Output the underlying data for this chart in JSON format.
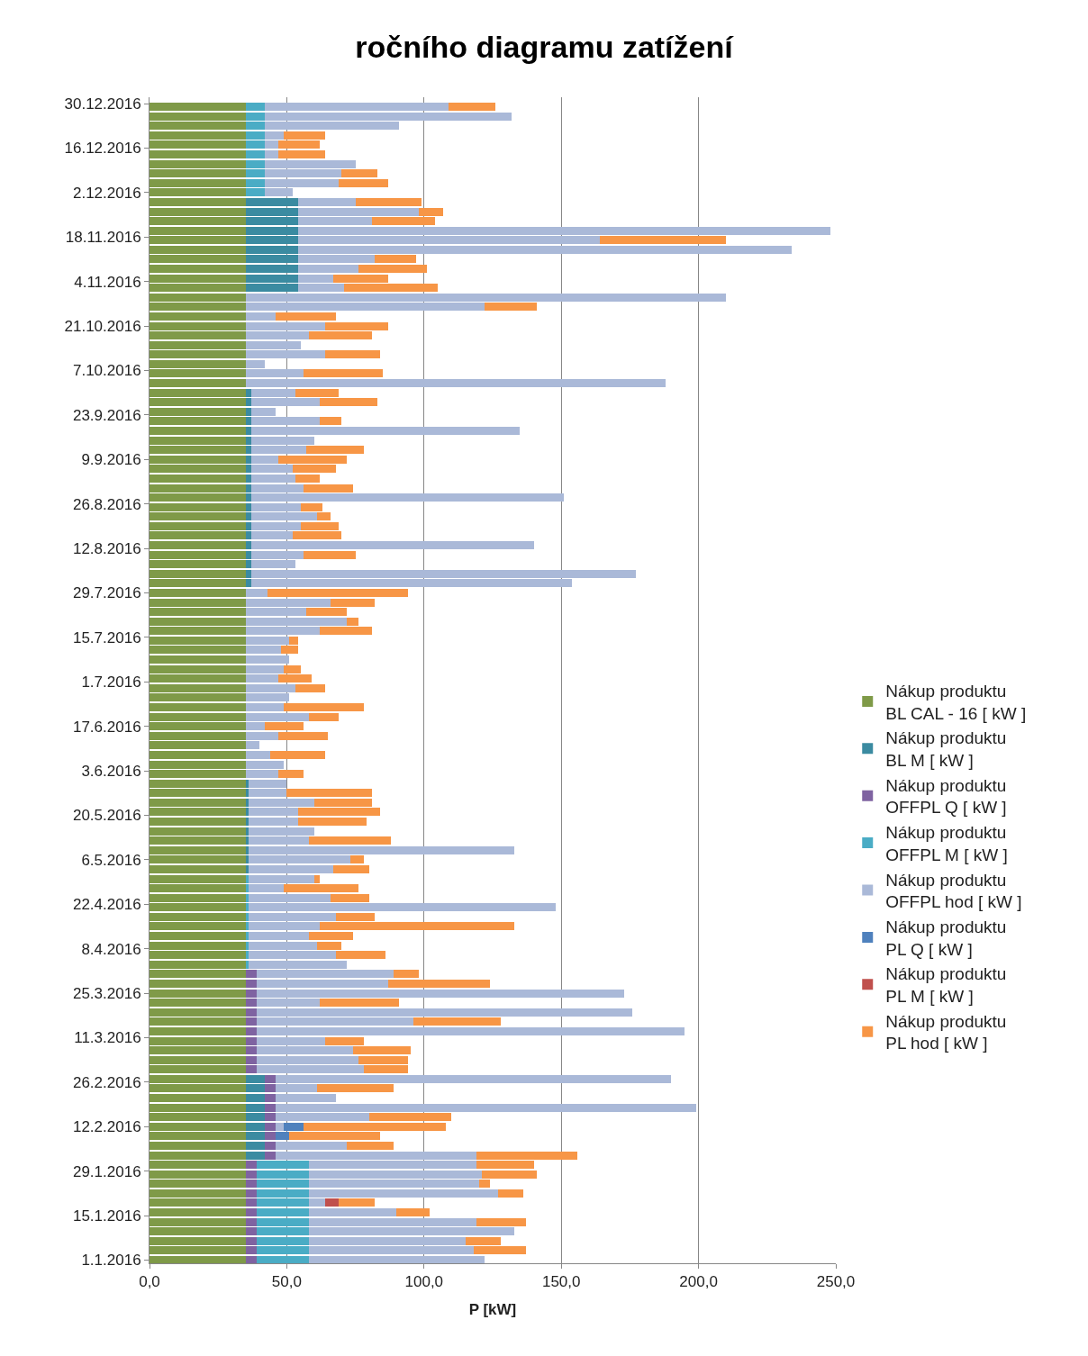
{
  "chart_data": {
    "type": "bar",
    "orientation": "horizontal",
    "stacked": true,
    "title": "ročního diagramu zatížení",
    "xlabel": "P [kW]",
    "x": [
      "2016-01-01",
      "2016-01-04",
      "2016-01-07",
      "2016-01-10",
      "2016-01-13",
      "2016-01-16",
      "2016-01-19",
      "2016-01-22",
      "2016-01-25",
      "2016-01-28",
      "2016-01-31",
      "2016-02-03",
      "2016-02-06",
      "2016-02-09",
      "2016-02-12",
      "2016-02-15",
      "2016-02-18",
      "2016-02-21",
      "2016-02-24",
      "2016-02-27",
      "2016-03-01",
      "2016-03-04",
      "2016-03-07",
      "2016-03-10",
      "2016-03-13",
      "2016-03-16",
      "2016-03-19",
      "2016-03-22",
      "2016-03-25",
      "2016-03-28",
      "2016-03-31",
      "2016-04-03",
      "2016-04-06",
      "2016-04-09",
      "2016-04-12",
      "2016-04-15",
      "2016-04-18",
      "2016-04-21",
      "2016-04-24",
      "2016-04-27",
      "2016-04-30",
      "2016-05-03",
      "2016-05-06",
      "2016-05-09",
      "2016-05-12",
      "2016-05-15",
      "2016-05-18",
      "2016-05-21",
      "2016-05-24",
      "2016-05-27",
      "2016-05-30",
      "2016-06-02",
      "2016-06-05",
      "2016-06-08",
      "2016-06-11",
      "2016-06-14",
      "2016-06-17",
      "2016-06-20",
      "2016-06-23",
      "2016-06-26",
      "2016-06-29",
      "2016-07-02",
      "2016-07-05",
      "2016-07-08",
      "2016-07-11",
      "2016-07-14",
      "2016-07-17",
      "2016-07-20",
      "2016-07-23",
      "2016-07-26",
      "2016-07-29",
      "2016-08-01",
      "2016-08-04",
      "2016-08-07",
      "2016-08-10",
      "2016-08-13",
      "2016-08-16",
      "2016-08-19",
      "2016-08-22",
      "2016-08-25",
      "2016-08-28",
      "2016-08-31",
      "2016-09-03",
      "2016-09-06",
      "2016-09-09",
      "2016-09-12",
      "2016-09-15",
      "2016-09-18",
      "2016-09-21",
      "2016-09-24",
      "2016-09-27",
      "2016-09-30",
      "2016-10-03",
      "2016-10-06",
      "2016-10-09",
      "2016-10-12",
      "2016-10-15",
      "2016-10-18",
      "2016-10-21",
      "2016-10-24",
      "2016-10-27",
      "2016-10-30",
      "2016-11-02",
      "2016-11-05",
      "2016-11-08",
      "2016-11-11",
      "2016-11-14",
      "2016-11-17",
      "2016-11-20",
      "2016-11-23",
      "2016-11-26",
      "2016-11-29",
      "2016-12-02",
      "2016-12-05",
      "2016-12-08",
      "2016-12-11",
      "2016-12-14",
      "2016-12-17",
      "2016-12-20",
      "2016-12-23",
      "2016-12-26",
      "2016-12-29"
    ],
    "series": [
      {
        "name": "Nákup produktu\nBL CAL - 16 [ kW ]",
        "color": "#7f9a48",
        "values": [
          35,
          35,
          35,
          35,
          35,
          35,
          35,
          35,
          35,
          35,
          35,
          35,
          35,
          35,
          35,
          35,
          35,
          35,
          35,
          35,
          35,
          35,
          35,
          35,
          35,
          35,
          35,
          35,
          35,
          35,
          35,
          35,
          35,
          35,
          35,
          35,
          35,
          35,
          35,
          35,
          35,
          35,
          35,
          35,
          35,
          35,
          35,
          35,
          35,
          35,
          35,
          35,
          35,
          35,
          35,
          35,
          35,
          35,
          35,
          35,
          35,
          35,
          35,
          35,
          35,
          35,
          35,
          35,
          35,
          35,
          35,
          35,
          35,
          35,
          35,
          35,
          35,
          35,
          35,
          35,
          35,
          35,
          35,
          35,
          35,
          35,
          35,
          35,
          35,
          35,
          35,
          35,
          35,
          35,
          35,
          35,
          35,
          35,
          35,
          35,
          35,
          35,
          35,
          35,
          35,
          35,
          35,
          35,
          35,
          35,
          35,
          35,
          35,
          35,
          35,
          35,
          35,
          35,
          35,
          35,
          35,
          35
        ]
      },
      {
        "name": "Nákup produktu\nBL M [ kW ]",
        "color": "#3b8ba1",
        "values": [
          null,
          null,
          null,
          null,
          null,
          null,
          null,
          null,
          null,
          null,
          null,
          7,
          7,
          7,
          7,
          7,
          7,
          7,
          7,
          7,
          null,
          null,
          null,
          null,
          null,
          null,
          null,
          null,
          null,
          null,
          null,
          null,
          null,
          null,
          null,
          null,
          null,
          null,
          null,
          null,
          null,
          1,
          1,
          1,
          1,
          1,
          1,
          1,
          1,
          1,
          1,
          null,
          null,
          null,
          null,
          null,
          null,
          null,
          null,
          null,
          null,
          null,
          null,
          null,
          null,
          null,
          null,
          null,
          null,
          null,
          null,
          2,
          2,
          2,
          2,
          2,
          2,
          2,
          2,
          2,
          2,
          2,
          2,
          2,
          2,
          2,
          2,
          2,
          2,
          2,
          2,
          2,
          null,
          null,
          null,
          null,
          null,
          null,
          null,
          null,
          null,
          null,
          19,
          19,
          19,
          19,
          19,
          19,
          19,
          19,
          19,
          19,
          null,
          null,
          null,
          null,
          null,
          null,
          null,
          null,
          null,
          null
        ]
      },
      {
        "name": "Nákup produktu\nOFFPL Q [ kW ]",
        "color": "#7f63a1",
        "values": [
          4,
          4,
          4,
          4,
          4,
          4,
          4,
          4,
          4,
          4,
          4,
          4,
          4,
          4,
          4,
          4,
          4,
          4,
          4,
          4,
          4,
          4,
          4,
          4,
          4,
          4,
          4,
          4,
          4,
          4,
          4,
          null,
          null,
          null,
          null,
          null,
          null,
          null,
          null,
          null,
          null,
          null,
          null,
          null,
          null,
          null,
          null,
          null,
          null,
          null,
          null,
          null,
          null,
          null,
          null,
          null,
          null,
          null,
          null,
          null,
          null,
          null,
          null,
          null,
          null,
          null,
          null,
          null,
          null,
          null,
          null,
          null,
          null,
          null,
          null,
          null,
          null,
          null,
          null,
          null,
          null,
          null,
          null,
          null,
          null,
          null,
          null,
          null,
          null,
          null,
          null,
          null,
          null,
          null,
          null,
          null,
          null,
          null,
          null,
          null,
          null,
          null,
          null,
          null,
          null,
          null,
          null,
          null,
          null,
          null,
          null,
          null,
          null,
          null,
          null,
          null,
          null,
          null,
          null,
          null,
          null,
          null
        ]
      },
      {
        "name": "Nákup produktu\nOFFPL M [ kW ]",
        "color": "#4aacc5",
        "values": [
          19,
          19,
          19,
          19,
          19,
          19,
          19,
          19,
          19,
          19,
          19,
          null,
          null,
          null,
          null,
          null,
          null,
          null,
          null,
          null,
          null,
          null,
          null,
          null,
          null,
          null,
          null,
          null,
          null,
          null,
          null,
          1,
          1,
          1,
          1,
          1,
          1,
          1,
          1,
          1,
          1,
          null,
          null,
          null,
          null,
          null,
          null,
          null,
          null,
          null,
          null,
          null,
          null,
          null,
          null,
          null,
          null,
          null,
          null,
          null,
          null,
          null,
          null,
          null,
          null,
          null,
          null,
          null,
          null,
          null,
          null,
          null,
          null,
          null,
          null,
          null,
          null,
          null,
          null,
          null,
          null,
          null,
          null,
          null,
          null,
          null,
          null,
          null,
          null,
          null,
          null,
          null,
          null,
          null,
          null,
          null,
          null,
          null,
          null,
          null,
          null,
          null,
          null,
          null,
          null,
          null,
          null,
          null,
          null,
          null,
          null,
          null,
          7,
          7,
          7,
          7,
          7,
          7,
          7,
          7,
          7,
          7
        ]
      },
      {
        "name": "Nákup produktu\nOFFPL hod [ kW ]",
        "color": "#aab9d8",
        "values": [
          64,
          60,
          57,
          75,
          61,
          32,
          6,
          69,
          62,
          63,
          61,
          73,
          26,
          0,
          3,
          34,
          153,
          22,
          15,
          144,
          39,
          37,
          35,
          25,
          156,
          57,
          137,
          23,
          134,
          48,
          50,
          36,
          32,
          25,
          22,
          26,
          32,
          112,
          30,
          13,
          24,
          31,
          37,
          97,
          22,
          24,
          18,
          18,
          24,
          14,
          14,
          12,
          14,
          9,
          5,
          12,
          7,
          23,
          14,
          16,
          18,
          12,
          14,
          16,
          13,
          16,
          27,
          37,
          22,
          31,
          8,
          117,
          140,
          16,
          19,
          103,
          15,
          18,
          24,
          18,
          114,
          19,
          16,
          15,
          10,
          20,
          23,
          98,
          25,
          9,
          25,
          16,
          153,
          21,
          7,
          29,
          20,
          23,
          29,
          11,
          87,
          175,
          17,
          13,
          22,
          28,
          180,
          110,
          194,
          27,
          44,
          21,
          10,
          27,
          28,
          33,
          5,
          5,
          7,
          49,
          90,
          67
        ]
      },
      {
        "name": "Nákup produktu\nPL Q [ kW ]",
        "color": "#4f81bd",
        "values": [
          null,
          null,
          null,
          null,
          null,
          null,
          null,
          null,
          null,
          null,
          null,
          null,
          null,
          5,
          7,
          null,
          null,
          null,
          null,
          null,
          null,
          null,
          null,
          null,
          null,
          null,
          null,
          null,
          null,
          null,
          null,
          null,
          null,
          null,
          null,
          null,
          null,
          null,
          null,
          null,
          null,
          null,
          null,
          null,
          null,
          null,
          null,
          null,
          null,
          null,
          null,
          null,
          null,
          null,
          null,
          null,
          null,
          null,
          null,
          null,
          null,
          null,
          null,
          null,
          null,
          null,
          null,
          null,
          null,
          null,
          null,
          null,
          null,
          null,
          null,
          null,
          null,
          null,
          null,
          null,
          null,
          null,
          null,
          null,
          null,
          null,
          null,
          null,
          null,
          null,
          null,
          null,
          null,
          null,
          null,
          null,
          null,
          null,
          null,
          null,
          null,
          null,
          null,
          null,
          null,
          null,
          null,
          null,
          null,
          null,
          null,
          null,
          null,
          null,
          null,
          null,
          null,
          null,
          null,
          null,
          null,
          null
        ]
      },
      {
        "name": "Nákup produktu\nPL M [ kW ]",
        "color": "#c0504d",
        "values": [
          null,
          null,
          null,
          null,
          null,
          null,
          5,
          null,
          null,
          null,
          null,
          null,
          null,
          null,
          null,
          null,
          null,
          null,
          null,
          null,
          null,
          null,
          null,
          null,
          null,
          null,
          null,
          null,
          null,
          null,
          null,
          null,
          null,
          null,
          null,
          null,
          null,
          null,
          null,
          null,
          null,
          null,
          null,
          null,
          null,
          null,
          null,
          null,
          null,
          null,
          null,
          null,
          null,
          null,
          null,
          null,
          null,
          null,
          null,
          null,
          null,
          null,
          null,
          null,
          null,
          null,
          null,
          null,
          null,
          null,
          null,
          null,
          null,
          null,
          null,
          null,
          null,
          null,
          null,
          null,
          null,
          null,
          null,
          null,
          null,
          null,
          null,
          null,
          null,
          null,
          null,
          null,
          null,
          null,
          null,
          null,
          null,
          null,
          null,
          null,
          null,
          null,
          null,
          null,
          null,
          null,
          null,
          null,
          null,
          null,
          null,
          null,
          null,
          null,
          null,
          null,
          null,
          null,
          null,
          null,
          null,
          null
        ]
      },
      {
        "name": "Nákup produktu\nPL hod [ kW ]",
        "color": "#f79646",
        "values": [
          null,
          19,
          13,
          null,
          18,
          12,
          13,
          9,
          4,
          20,
          21,
          37,
          17,
          33,
          52,
          30,
          null,
          null,
          28,
          null,
          16,
          18,
          21,
          14,
          null,
          32,
          null,
          29,
          null,
          37,
          9,
          null,
          18,
          9,
          16,
          71,
          14,
          null,
          14,
          27,
          2,
          13,
          5,
          null,
          30,
          null,
          25,
          30,
          21,
          31,
          null,
          9,
          null,
          20,
          null,
          18,
          14,
          11,
          29,
          null,
          11,
          12,
          6,
          null,
          6,
          3,
          19,
          4,
          15,
          16,
          51,
          null,
          null,
          null,
          19,
          null,
          18,
          14,
          5,
          8,
          null,
          18,
          9,
          16,
          25,
          21,
          null,
          null,
          8,
          null,
          21,
          16,
          null,
          29,
          null,
          20,
          null,
          23,
          23,
          22,
          19,
          null,
          34,
          20,
          25,
          15,
          null,
          46,
          null,
          23,
          9,
          24,
          null,
          18,
          13,
          null,
          17,
          15,
          15,
          null,
          null,
          17
        ]
      }
    ],
    "xlim": [
      0,
      250
    ],
    "xticks": [
      {
        "value": 0,
        "label": "0,0"
      },
      {
        "value": 50,
        "label": "50,0"
      },
      {
        "value": 100,
        "label": "100,0"
      },
      {
        "value": 150,
        "label": "150,0"
      },
      {
        "value": 200,
        "label": "200,0"
      },
      {
        "value": 250,
        "label": "250,0"
      }
    ],
    "ylim": [
      "2015-12-31",
      "2017-01-01"
    ],
    "yticks": [
      {
        "value": "2016-01-01",
        "label": "1.1.2016"
      },
      {
        "value": "2016-01-15",
        "label": "15.1.2016"
      },
      {
        "value": "2016-01-29",
        "label": "29.1.2016"
      },
      {
        "value": "2016-02-12",
        "label": "12.2.2016"
      },
      {
        "value": "2016-02-26",
        "label": "26.2.2016"
      },
      {
        "value": "2016-03-11",
        "label": "11.3.2016"
      },
      {
        "value": "2016-03-25",
        "label": "25.3.2016"
      },
      {
        "value": "2016-04-08",
        "label": "8.4.2016"
      },
      {
        "value": "2016-04-22",
        "label": "22.4.2016"
      },
      {
        "value": "2016-05-06",
        "label": "6.5.2016"
      },
      {
        "value": "2016-05-20",
        "label": "20.5.2016"
      },
      {
        "value": "2016-06-03",
        "label": "3.6.2016"
      },
      {
        "value": "2016-06-17",
        "label": "17.6.2016"
      },
      {
        "value": "2016-07-01",
        "label": "1.7.2016"
      },
      {
        "value": "2016-07-15",
        "label": "15.7.2016"
      },
      {
        "value": "2016-07-29",
        "label": "29.7.2016"
      },
      {
        "value": "2016-08-12",
        "label": "12.8.2016"
      },
      {
        "value": "2016-08-26",
        "label": "26.8.2016"
      },
      {
        "value": "2016-09-09",
        "label": "9.9.2016"
      },
      {
        "value": "2016-09-23",
        "label": "23.9.2016"
      },
      {
        "value": "2016-10-07",
        "label": "7.10.2016"
      },
      {
        "value": "2016-10-21",
        "label": "21.10.2016"
      },
      {
        "value": "2016-11-04",
        "label": "4.11.2016"
      },
      {
        "value": "2016-11-18",
        "label": "18.11.2016"
      },
      {
        "value": "2016-12-02",
        "label": "2.12.2016"
      },
      {
        "value": "2016-12-16",
        "label": "16.12.2016"
      },
      {
        "value": "2016-12-30",
        "label": "30.12.2016"
      }
    ],
    "grid": "x",
    "legend": "right"
  }
}
